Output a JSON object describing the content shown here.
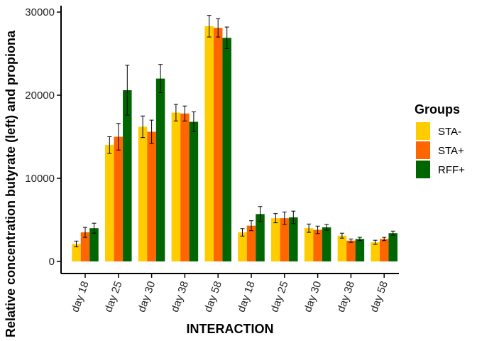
{
  "chart_data": {
    "type": "bar",
    "title": "",
    "xlabel": "INTERACTION",
    "ylabel": "Relative concentration butyrate (left) and propiona",
    "ylim": [
      0,
      31000
    ],
    "yticks": [
      0,
      10000,
      20000,
      30000
    ],
    "ytick_labels": [
      "0",
      "10000",
      "20000",
      "30000"
    ],
    "grid": false,
    "legend_position": "right",
    "legend_title": "Groups",
    "categories": [
      "day 18",
      "day 25",
      "day 30",
      "day 38",
      "day 58",
      "day 18",
      "day 25",
      "day 30",
      "day 38",
      "day 58"
    ],
    "series": [
      {
        "name": "STA-",
        "color": "#FFCC00",
        "values": [
          2100,
          14000,
          16200,
          17900,
          28300,
          3500,
          5200,
          4000,
          3100,
          2300
        ],
        "errors": [
          350,
          1000,
          1300,
          1000,
          1300,
          450,
          550,
          500,
          300,
          250
        ]
      },
      {
        "name": "STA+",
        "color": "#FF6600",
        "values": [
          3500,
          15000,
          15600,
          17800,
          28100,
          4300,
          5200,
          3800,
          2500,
          2700
        ],
        "errors": [
          600,
          1600,
          1400,
          900,
          1100,
          600,
          750,
          450,
          200,
          200
        ]
      },
      {
        "name": "RFF+",
        "color": "#006600",
        "values": [
          4000,
          20600,
          22000,
          16800,
          26900,
          5700,
          5300,
          4100,
          2700,
          3400
        ],
        "errors": [
          600,
          3000,
          1700,
          1200,
          1300,
          900,
          750,
          350,
          200,
          250
        ]
      }
    ]
  }
}
